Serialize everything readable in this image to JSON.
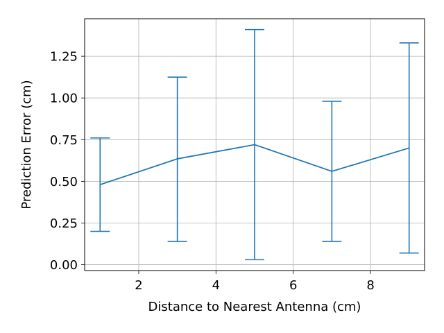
{
  "chart_data": {
    "type": "line",
    "title": "",
    "xlabel": "Distance to Nearest Antenna (cm)",
    "ylabel": "Prediction Error (cm)",
    "xlim": [
      0.6,
      9.4
    ],
    "ylim": [
      -0.035,
      1.475
    ],
    "xticks": [
      2,
      4,
      6,
      8
    ],
    "xtick_labels": [
      "2",
      "4",
      "6",
      "8"
    ],
    "yticks": [
      0.0,
      0.25,
      0.5,
      0.75,
      1.0,
      1.25
    ],
    "ytick_labels": [
      "0.00",
      "0.25",
      "0.50",
      "0.75",
      "1.00",
      "1.25"
    ],
    "grid": true,
    "color": "#1f77b4",
    "series": [
      {
        "x": [
          1,
          3,
          5,
          7,
          9
        ],
        "y": [
          0.48,
          0.635,
          0.72,
          0.56,
          0.7
        ],
        "err_low": [
          0.2,
          0.14,
          0.03,
          0.14,
          0.07
        ],
        "err_high": [
          0.76,
          1.125,
          1.41,
          0.98,
          1.33
        ]
      }
    ]
  }
}
